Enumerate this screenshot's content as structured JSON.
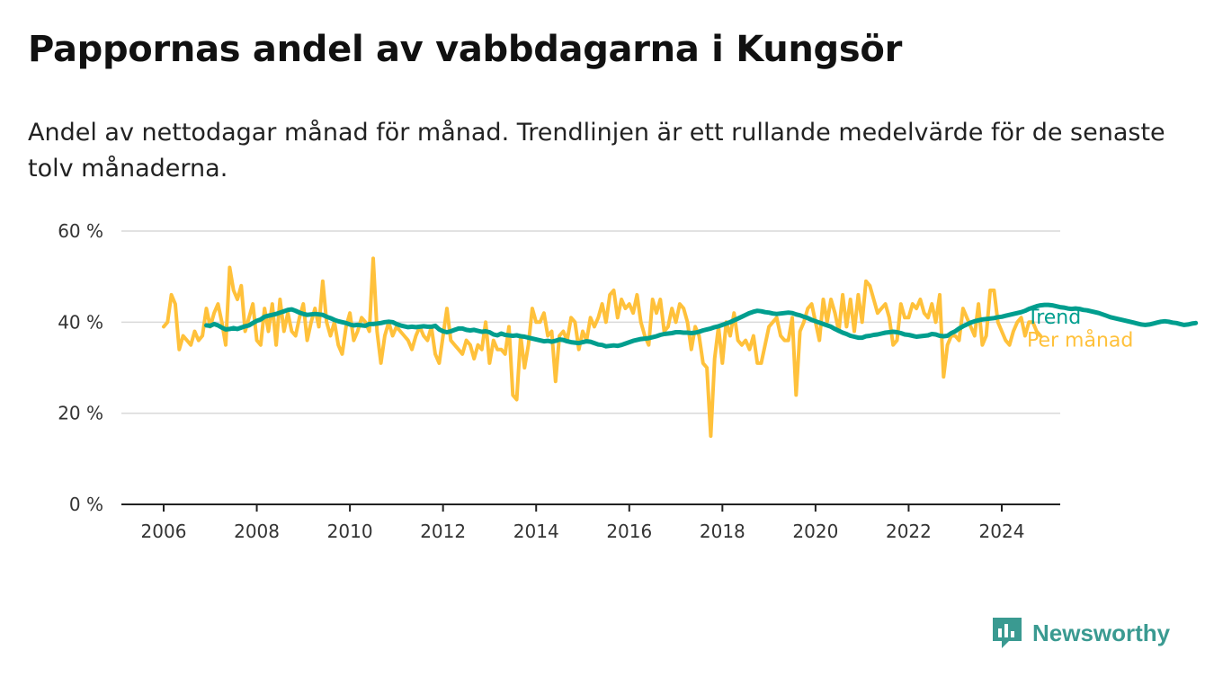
{
  "title": "Pappornas andel av vabbdagarna i Kungsör",
  "subtitle": "Andel av nettodagar månad för månad. Trendlinjen är ett rullande medelvärde för de senaste tolv månaderna.",
  "brand": {
    "name": "Newsworthy",
    "color": "#3a9a91",
    "icon": "bar-chart-icon"
  },
  "chart_data": {
    "type": "line",
    "x_axis": {
      "ticks": [
        "2006",
        "2008",
        "2010",
        "2012",
        "2014",
        "2016",
        "2018",
        "2020",
        "2022",
        "2024"
      ],
      "range": [
        2005.0,
        2025.0
      ]
    },
    "y_axis": {
      "ticks": [
        "0 %",
        "20 %",
        "40 %",
        "60 %"
      ],
      "range": [
        0,
        60
      ],
      "grid": true
    },
    "series": [
      {
        "name": "Per månad",
        "color": "#ffc13b",
        "start": 2006.0,
        "step": 0.0833333,
        "values": [
          39,
          40,
          46,
          44,
          34,
          37,
          36,
          35,
          38,
          36,
          37,
          43,
          39,
          42,
          44,
          40,
          35,
          52,
          47,
          45,
          48,
          38,
          41,
          44,
          36,
          35,
          43,
          38,
          44,
          35,
          45,
          38,
          42,
          38,
          37,
          41,
          44,
          36,
          40,
          43,
          39,
          49,
          40,
          37,
          40,
          35,
          33,
          39,
          42,
          36,
          38,
          41,
          40,
          38,
          54,
          38,
          31,
          37,
          40,
          37,
          39,
          38,
          37,
          36,
          34,
          37,
          39,
          37,
          36,
          39,
          33,
          31,
          37,
          43,
          36,
          35,
          34,
          33,
          36,
          35,
          32,
          35,
          34,
          40,
          31,
          36,
          34,
          34,
          33,
          39,
          24,
          23,
          37,
          30,
          35,
          43,
          40,
          40,
          42,
          37,
          38,
          27,
          37,
          38,
          36,
          41,
          40,
          34,
          38,
          36,
          41,
          39,
          41,
          44,
          40,
          46,
          47,
          41,
          45,
          43,
          44,
          42,
          46,
          40,
          37,
          35,
          45,
          42,
          45,
          38,
          39,
          43,
          40,
          44,
          43,
          40,
          34,
          39,
          37,
          31,
          30,
          15,
          32,
          39,
          31,
          40,
          37,
          42,
          36,
          35,
          36,
          34,
          37,
          31,
          31,
          35,
          39,
          40,
          41,
          37,
          36,
          36,
          41,
          24,
          38,
          40,
          43,
          44,
          40,
          36,
          45,
          40,
          45,
          42,
          38,
          46,
          39,
          45,
          38,
          46,
          40,
          49,
          48,
          45,
          42,
          43,
          44,
          41,
          35,
          36,
          44,
          41,
          41,
          44,
          43,
          45,
          42,
          41,
          44,
          40,
          46,
          28,
          35,
          37,
          37,
          36,
          43,
          41,
          39,
          37,
          44,
          35,
          37,
          47,
          47,
          40,
          38,
          36,
          35,
          38,
          40,
          41,
          37,
          40,
          40,
          38,
          37
        ]
      },
      {
        "name": "Trend",
        "color": "#009e8e",
        "start": 2006.9167,
        "step": 0.0833333,
        "values": [
          39.3,
          39.2,
          39.6,
          39.3,
          38.8,
          38.4,
          38.5,
          38.7,
          38.5,
          38.8,
          39.1,
          39.3,
          39.8,
          40.3,
          40.6,
          41.2,
          41.4,
          41.6,
          41.8,
          42.1,
          42.4,
          42.7,
          42.8,
          42.5,
          42.1,
          41.8,
          41.6,
          41.7,
          41.8,
          41.7,
          41.6,
          41.2,
          40.9,
          40.5,
          40.2,
          40.0,
          39.8,
          39.5,
          39.3,
          39.4,
          39.3,
          39.2,
          39.6,
          39.6,
          39.7,
          39.8,
          40.0,
          40.1,
          40.0,
          39.6,
          39.3,
          39.1,
          38.9,
          39.0,
          38.9,
          39.0,
          39.1,
          39.0,
          39.0,
          39.2,
          38.4,
          38.0,
          37.8,
          38.0,
          38.3,
          38.6,
          38.6,
          38.3,
          38.2,
          38.3,
          38.1,
          37.9,
          38.0,
          37.8,
          37.3,
          37.1,
          37.5,
          37.2,
          37.1,
          37.0,
          37.1,
          36.9,
          36.8,
          36.6,
          36.4,
          36.2,
          36.0,
          35.8,
          35.9,
          35.7,
          35.9,
          36.2,
          36.1,
          35.8,
          35.6,
          35.5,
          35.4,
          35.6,
          35.8,
          35.7,
          35.4,
          35.1,
          35.0,
          34.7,
          34.8,
          34.9,
          34.8,
          35.0,
          35.3,
          35.6,
          35.9,
          36.1,
          36.3,
          36.4,
          36.5,
          36.7,
          36.9,
          37.2,
          37.4,
          37.5,
          37.6,
          37.8,
          37.8,
          37.7,
          37.7,
          37.6,
          37.7,
          37.9,
          38.2,
          38.4,
          38.6,
          38.9,
          39.1,
          39.4,
          39.7,
          40.0,
          40.4,
          40.8,
          41.2,
          41.6,
          42.0,
          42.3,
          42.5,
          42.4,
          42.2,
          42.1,
          41.9,
          41.8,
          41.9,
          42.0,
          42.1,
          42.0,
          41.7,
          41.5,
          41.2,
          40.9,
          40.5,
          40.2,
          39.9,
          39.6,
          39.3,
          39.0,
          38.5,
          38.1,
          37.7,
          37.4,
          37.0,
          36.8,
          36.6,
          36.6,
          36.9,
          37.0,
          37.2,
          37.3,
          37.5,
          37.7,
          37.8,
          37.9,
          37.8,
          37.6,
          37.3,
          37.2,
          37.0,
          36.8,
          36.9,
          37.0,
          37.1,
          37.4,
          37.3,
          37.0,
          36.9,
          37.0,
          37.6,
          38.0,
          38.6,
          39.1,
          39.5,
          39.9,
          40.2,
          40.4,
          40.6,
          40.7,
          40.8,
          40.9,
          41.1,
          41.2,
          41.4,
          41.6,
          41.8,
          42.0,
          42.2,
          42.5,
          42.9,
          43.2,
          43.5,
          43.7,
          43.8,
          43.8,
          43.7,
          43.5,
          43.3,
          43.2,
          43.0,
          42.9,
          43.0,
          42.9,
          42.7,
          42.6,
          42.4,
          42.2,
          42.0,
          41.7,
          41.4,
          41.1,
          40.9,
          40.7,
          40.5,
          40.3,
          40.1,
          39.9,
          39.7,
          39.5,
          39.4,
          39.5,
          39.7,
          39.9,
          40.1,
          40.2,
          40.1,
          39.9,
          39.8,
          39.6,
          39.4,
          39.5,
          39.7,
          39.8
        ]
      }
    ],
    "legend": "end-of-line labels at right"
  }
}
